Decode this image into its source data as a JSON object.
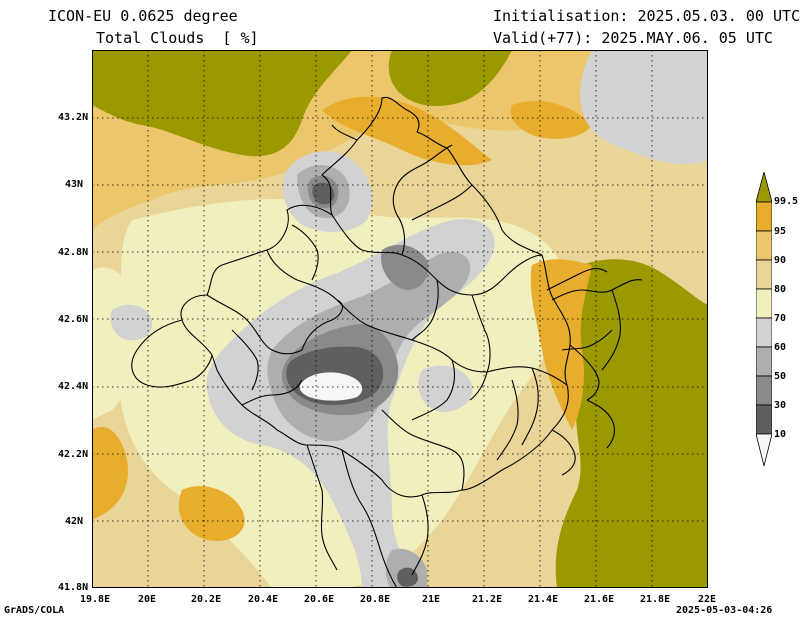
{
  "header": {
    "model_line": "ICON-EU 0.0625 degree",
    "field_line": "Total Clouds  [ %]",
    "init_line": "Initialisation: 2025.05.03. 00 UTC",
    "valid_line": "Valid(+77): 2025.MAY.06. 05 UTC"
  },
  "axes": {
    "lon_labels": [
      "19.8E",
      "20E",
      "20.2E",
      "20.4E",
      "20.6E",
      "20.8E",
      "21E",
      "21.2E",
      "21.4E",
      "21.6E",
      "21.8E",
      "22E"
    ],
    "lat_labels": [
      "43.2N",
      "43N",
      "42.8N",
      "42.6N",
      "42.4N",
      "42.2N",
      "42N",
      "41.8N"
    ]
  },
  "colorbar": {
    "levels": [
      "99.5",
      "95",
      "90",
      "80",
      "70",
      "60",
      "50",
      "30",
      "10"
    ],
    "colors": {
      "c99": "#9b9900",
      "c95": "#e8ad2c",
      "c90": "#ecc66a",
      "c80": "#e9d598",
      "c70": "#f1efbd",
      "c60": "#d2d2d2",
      "c50": "#aeaeae",
      "c30": "#8a8a8a",
      "c10": "#5f5f5f",
      "c0": "#f6f6f6"
    }
  },
  "footer": {
    "left": "GrADS/COLA",
    "right": "2025-05-03-04:26"
  }
}
